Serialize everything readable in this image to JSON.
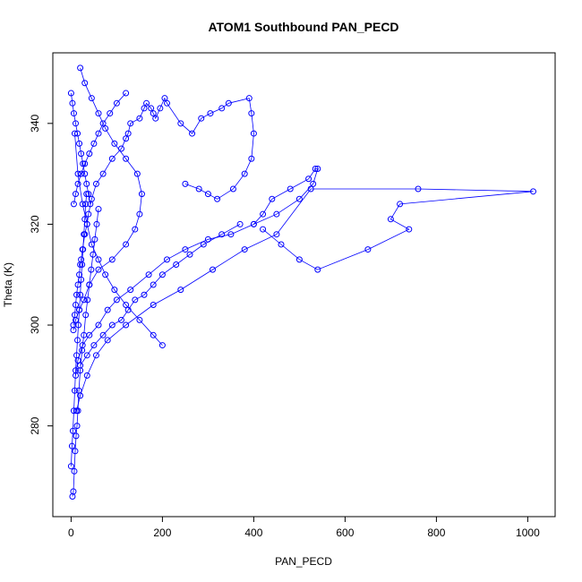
{
  "chart_data": {
    "type": "line",
    "title": "ATOM1 Southbound PAN_PECD",
    "xlabel": "PAN_PECD",
    "ylabel": "Theta (K)",
    "xlim": [
      -40,
      1060
    ],
    "ylim": [
      262,
      354
    ],
    "xticks": [
      0,
      200,
      400,
      600,
      800,
      1000
    ],
    "yticks": [
      280,
      300,
      320,
      340
    ],
    "grid": false,
    "legend": "none",
    "color": "#0000ff",
    "marker": "open-circle",
    "series": [
      {
        "x": [
          5,
          8,
          10,
          12,
          15,
          18,
          20,
          22,
          25,
          30,
          35,
          38,
          45,
          55,
          70,
          90,
          110,
          120,
          125,
          130,
          150,
          160,
          165,
          175,
          180,
          185,
          195,
          205,
          210,
          240,
          265,
          285,
          305,
          330,
          345,
          390,
          395,
          400,
          395,
          380,
          355,
          320,
          300,
          280,
          250
        ],
        "y": [
          300,
          302,
          304,
          306,
          308,
          310,
          312,
          313,
          315,
          318,
          320,
          322,
          325,
          328,
          330,
          333,
          335,
          337,
          338,
          340,
          341,
          343,
          344,
          343,
          342,
          341,
          343,
          345,
          344,
          340,
          338,
          341,
          342,
          343,
          344,
          345,
          342,
          338,
          333,
          330,
          327,
          325,
          326,
          327,
          328
        ]
      },
      {
        "x": [
          10,
          15,
          25,
          40,
          60,
          80,
          100,
          130,
          170,
          210,
          250,
          300,
          350,
          400,
          450,
          500,
          530,
          540,
          535,
          520,
          480,
          440,
          420,
          400
        ],
        "y": [
          290,
          293,
          296,
          298,
          300,
          303,
          305,
          307,
          310,
          313,
          315,
          317,
          318,
          320,
          322,
          325,
          328,
          331,
          331,
          329,
          327,
          325,
          322,
          320
        ]
      },
      {
        "x": [
          12,
          20,
          35,
          55,
          80,
          120,
          180,
          240,
          310,
          380,
          450,
          525,
          760,
          1012,
          720,
          700,
          740,
          650,
          540,
          500,
          460,
          420
        ],
        "y": [
          283,
          286,
          290,
          294,
          297,
          300,
          304,
          307,
          311,
          315,
          318,
          327,
          327,
          326.5,
          324,
          321,
          319,
          315,
          311,
          313,
          316,
          319
        ]
      },
      {
        "x": [
          3,
          5,
          7,
          9,
          11,
          13,
          15,
          17,
          20,
          24,
          28,
          32,
          36,
          40,
          44,
          48,
          52,
          56,
          60
        ],
        "y": [
          266,
          267,
          271,
          275,
          278,
          280,
          283,
          287,
          291,
          295,
          298,
          302,
          305,
          308,
          311,
          314,
          317,
          320,
          323
        ]
      },
      {
        "x": [
          5,
          10,
          18,
          28,
          40,
          60,
          90,
          120,
          140,
          150,
          155,
          145,
          120,
          95,
          75,
          60,
          45,
          30,
          20
        ],
        "y": [
          299,
          301,
          303,
          305,
          308,
          311,
          313,
          316,
          319,
          322,
          326,
          330,
          333,
          336,
          339,
          342,
          345,
          348,
          351
        ]
      },
      {
        "x": [
          0,
          2,
          4,
          6,
          8,
          10,
          12,
          14,
          16,
          18,
          20,
          22,
          24,
          26,
          28,
          30,
          32,
          34
        ],
        "y": [
          272,
          276,
          279,
          283,
          287,
          291,
          294,
          297,
          300,
          303,
          306,
          309,
          312,
          315,
          318,
          321,
          324,
          326
        ]
      },
      {
        "x": [
          20,
          35,
          50,
          70,
          90,
          110,
          125,
          140,
          160,
          180,
          200,
          230,
          260,
          290,
          330,
          370
        ],
        "y": [
          292,
          294,
          296,
          298,
          300,
          301,
          303,
          305,
          306,
          308,
          310,
          312,
          314,
          316,
          318,
          320
        ]
      },
      {
        "x": [
          200,
          180,
          150,
          120,
          95,
          75,
          60,
          45,
          35,
          25,
          15,
          8
        ],
        "y": [
          296,
          298,
          301,
          304,
          307,
          310,
          313,
          316,
          320,
          324,
          330,
          338
        ]
      },
      {
        "x": [
          0,
          3,
          6,
          10,
          14,
          18,
          22,
          26,
          30,
          34,
          38,
          42
        ],
        "y": [
          346,
          344,
          342,
          340,
          338,
          336,
          334,
          332,
          330,
          328,
          326,
          324
        ]
      },
      {
        "x": [
          120,
          100,
          85,
          70,
          60,
          50,
          40,
          30,
          22,
          15,
          10,
          6
        ],
        "y": [
          346,
          344,
          342,
          340,
          338,
          336,
          334,
          332,
          330,
          328,
          326,
          324
        ]
      }
    ]
  }
}
